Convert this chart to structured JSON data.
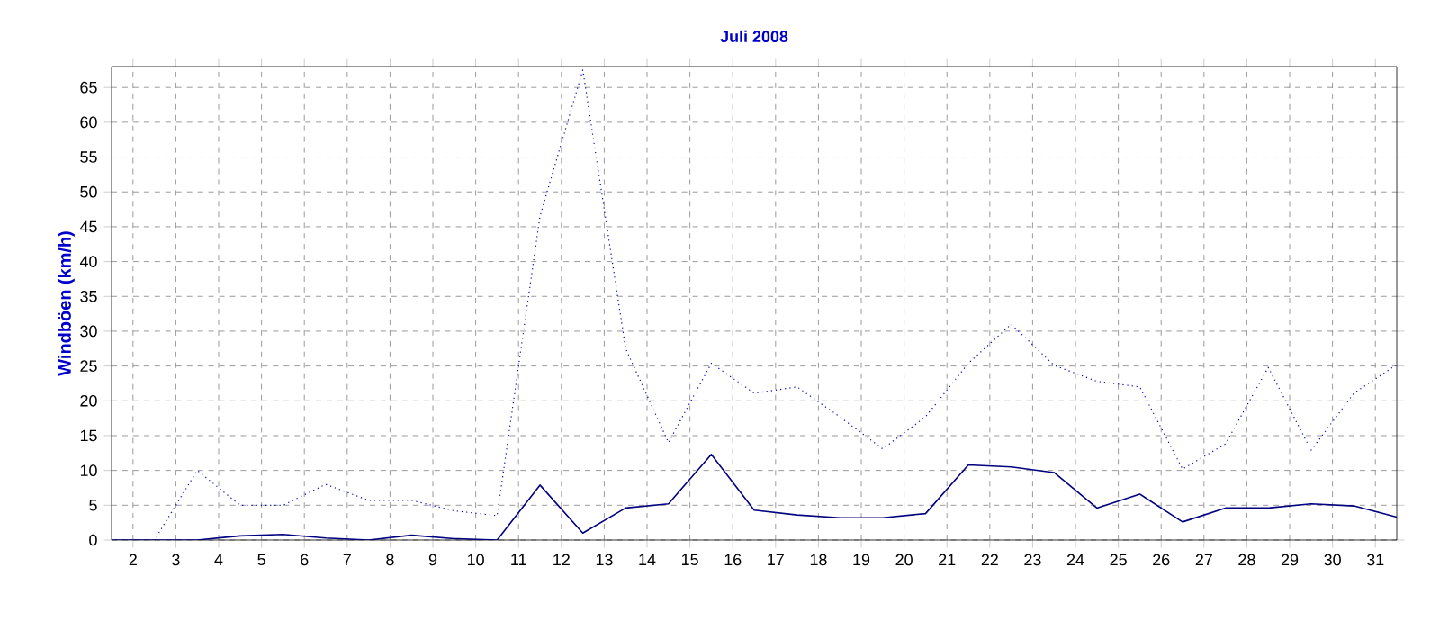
{
  "chart_data": {
    "type": "line",
    "title": "Juli 2008",
    "ylabel": "Windböen  (km/h)",
    "x": [
      1.5,
      2.5,
      3.5,
      4.5,
      5.5,
      6.5,
      7.5,
      8.5,
      9.5,
      10.5,
      11.5,
      12.5,
      13.5,
      14.5,
      15.5,
      16.5,
      17.5,
      18.5,
      19.5,
      20.5,
      21.5,
      22.5,
      23.5,
      24.5,
      25.5,
      26.5,
      27.5,
      28.5,
      29.5,
      30.5,
      31.5
    ],
    "series": [
      {
        "color": "#0000c0",
        "line_style": "dotted",
        "values": [
          0,
          0,
          10,
          5,
          5,
          8,
          5.7,
          5.7,
          4.2,
          3.5,
          46.5,
          67.5,
          27.5,
          14,
          25.4,
          21.1,
          22,
          17.7,
          13.1,
          17.7,
          25.4,
          31,
          25.1,
          22.8,
          22,
          10.2,
          13.8,
          24.8,
          12.9,
          21.1,
          25.2
        ]
      },
      {
        "color": "#000080",
        "line_style": "solid",
        "values": [
          0,
          0,
          0,
          0.6,
          0.8,
          0.3,
          0,
          0.7,
          0.2,
          0,
          7.9,
          1,
          4.6,
          5.2,
          12.3,
          4.3,
          3.6,
          3.2,
          3.2,
          3.8,
          10.8,
          10.5,
          9.7,
          4.6,
          6.6,
          2.6,
          4.6,
          4.6,
          5.2,
          4.9,
          3.3
        ]
      }
    ],
    "xlim": [
      1.5,
      31.5
    ],
    "ylim": [
      0,
      68
    ],
    "xticks": [
      2,
      3,
      4,
      5,
      6,
      7,
      8,
      9,
      10,
      11,
      12,
      13,
      14,
      15,
      16,
      17,
      18,
      19,
      20,
      21,
      22,
      23,
      24,
      25,
      26,
      27,
      28,
      29,
      30,
      31
    ],
    "yticks": [
      0,
      5,
      10,
      15,
      20,
      25,
      30,
      35,
      40,
      45,
      50,
      55,
      60,
      65
    ],
    "grid": true,
    "marker": "none"
  }
}
